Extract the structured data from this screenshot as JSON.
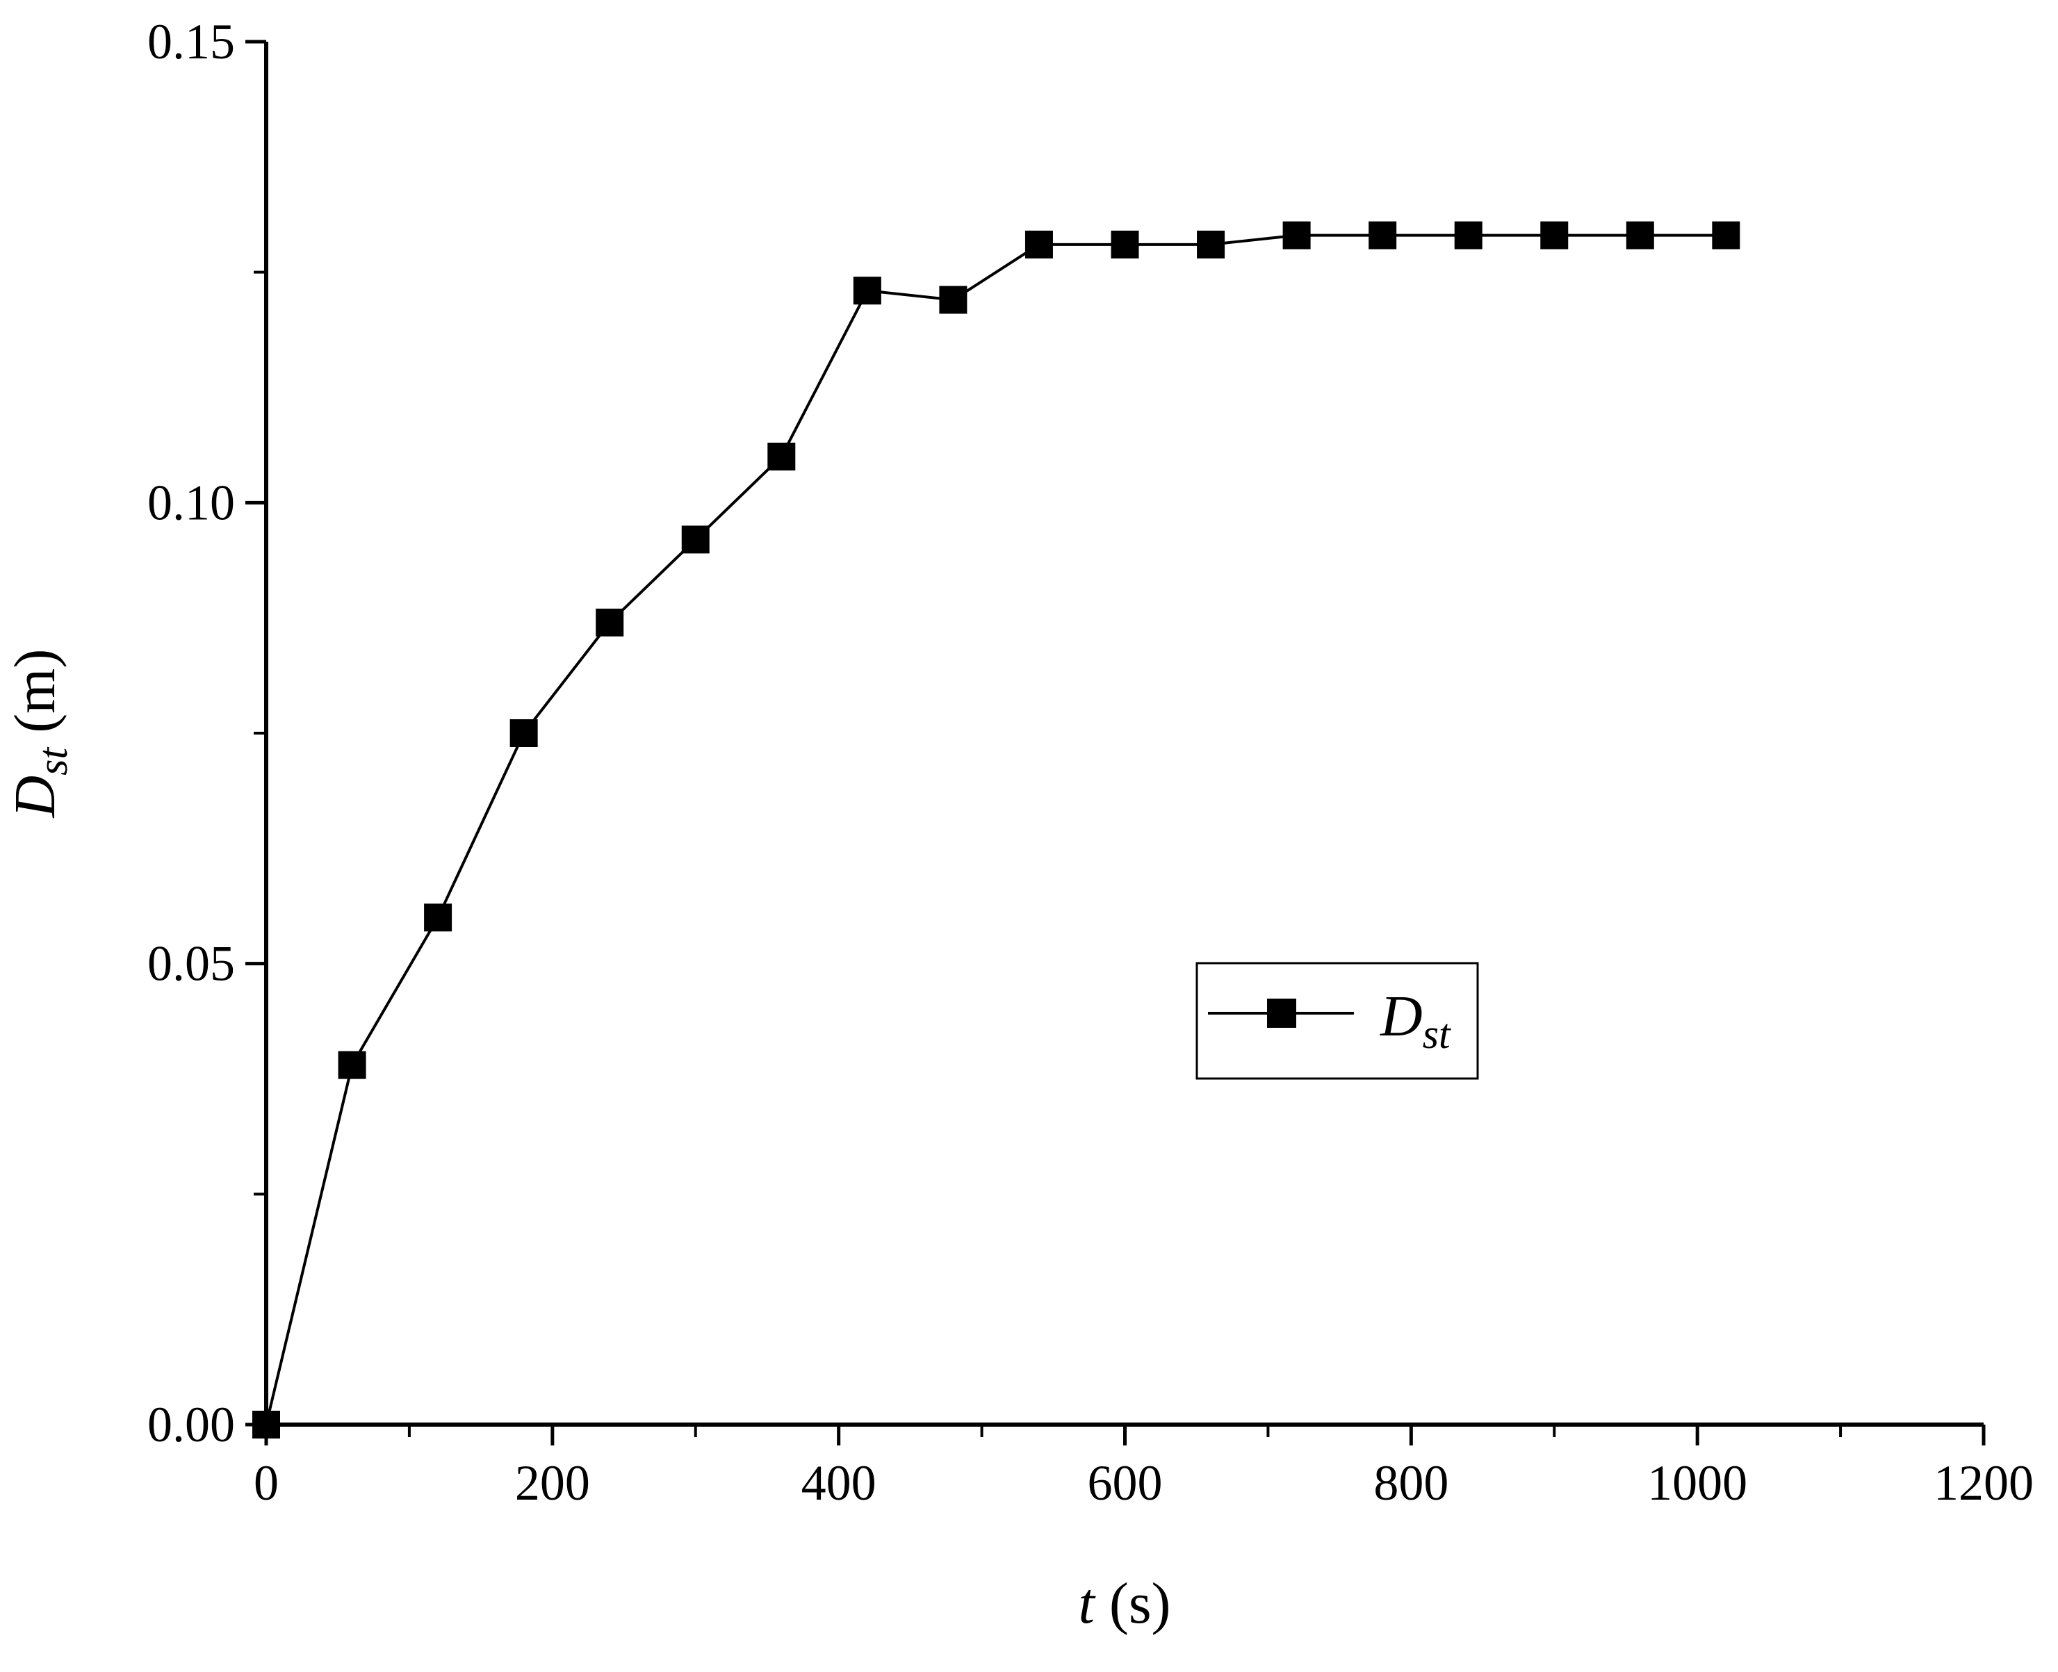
{
  "chart_data": {
    "type": "line",
    "title": "",
    "xlabel": {
      "var": "t",
      "unit": " (s)"
    },
    "ylabel": {
      "var": "D",
      "sub": "st",
      "unit": " (m)"
    },
    "xlim": [
      0,
      1200
    ],
    "ylim": [
      0,
      0.15
    ],
    "xticks": [
      "0",
      "200",
      "400",
      "600",
      "800",
      "1000",
      "1200"
    ],
    "yticks": [
      "0.00",
      "0.05",
      "0.10",
      "0.15"
    ],
    "grid": false,
    "legend_position": "center-right",
    "series": [
      {
        "name": {
          "var": "D",
          "sub": "st"
        },
        "marker": "square",
        "color": "#000000",
        "x": [
          0,
          60,
          120,
          180,
          240,
          300,
          360,
          420,
          480,
          540,
          600,
          660,
          720,
          780,
          840,
          900,
          960,
          1020
        ],
        "y": [
          0.0,
          0.039,
          0.055,
          0.075,
          0.087,
          0.096,
          0.105,
          0.123,
          0.122,
          0.128,
          0.128,
          0.128,
          0.129,
          0.129,
          0.129,
          0.129,
          0.129,
          0.129
        ]
      }
    ]
  }
}
